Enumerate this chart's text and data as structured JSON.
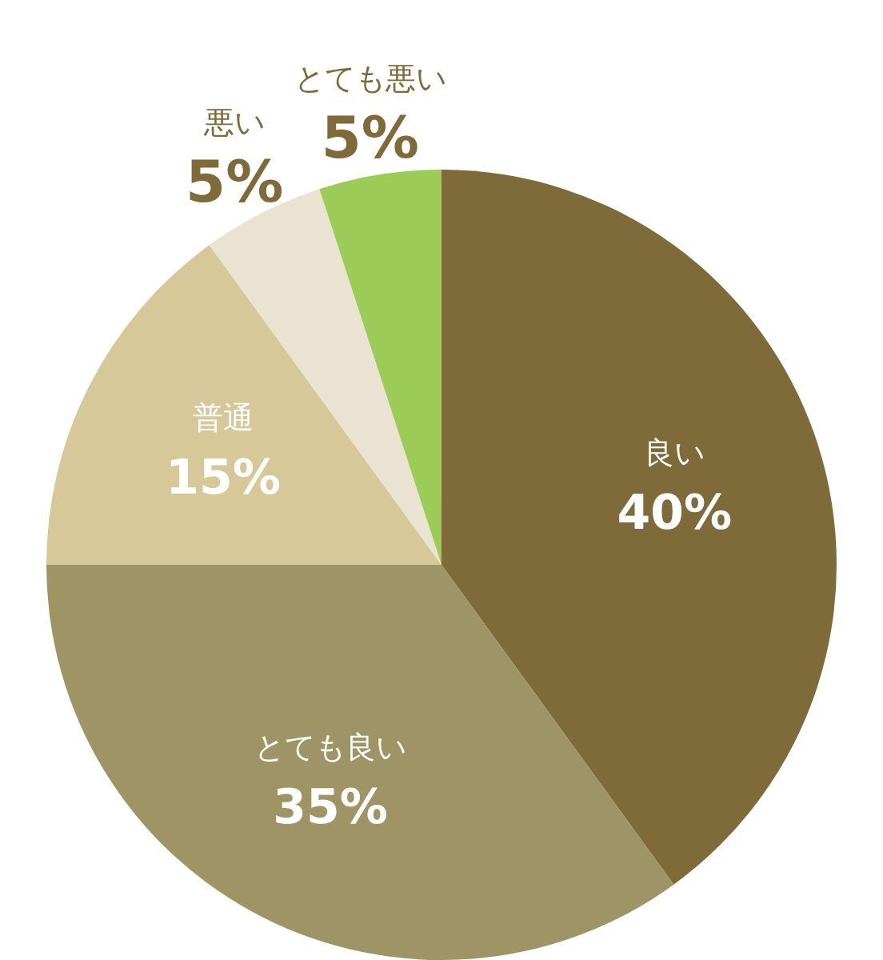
{
  "chart_data": {
    "type": "pie",
    "categories": [
      "良い",
      "とても良い",
      "普通",
      "悪い",
      "とても悪い"
    ],
    "values": [
      40,
      35,
      15,
      5,
      5
    ],
    "value_labels": [
      "40%",
      "35%",
      "15%",
      "5%",
      "5%"
    ],
    "colors": [
      "#7f6a3a",
      "#9e9466",
      "#d6c898",
      "#ebe3d1",
      "#9ccb57"
    ]
  }
}
